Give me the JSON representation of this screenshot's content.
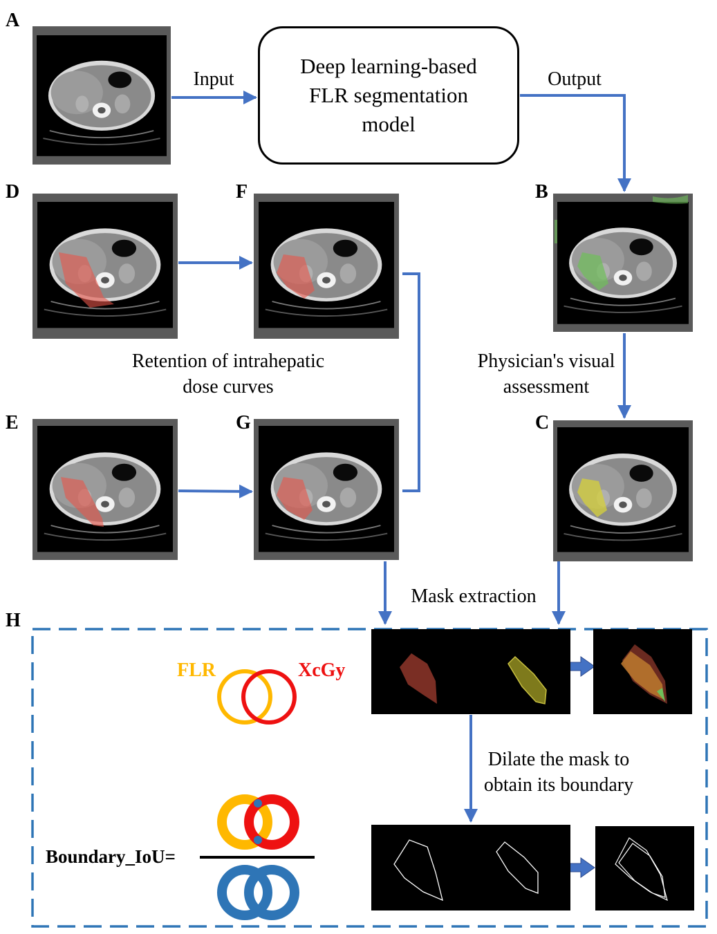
{
  "panel_labels": {
    "A": "A",
    "B": "B",
    "C": "C",
    "D": "D",
    "E": "E",
    "F": "F",
    "G": "G",
    "H": "H"
  },
  "edge_labels": {
    "input": "Input",
    "output": "Output",
    "retention_line1": "Retention of intrahepatic",
    "retention_line2": "dose curves",
    "physician_line1": "Physician's visual",
    "physician_line2": "assessment",
    "mask_extraction": "Mask extraction",
    "dilate_line1": "Dilate the mask to",
    "dilate_line2": "obtain its boundary"
  },
  "model": {
    "line1": "Deep learning-based",
    "line2": "FLR segmentation",
    "line3": "model"
  },
  "legend": {
    "flr": "FLR",
    "xcgy": "XcGy"
  },
  "formula": {
    "label": "Boundary_IoU="
  },
  "colors": {
    "arrow": "#4472C4",
    "flr": "#FFB800",
    "xcgy": "#EE1111",
    "union": "#2E75B6",
    "dashed_border": "#2E75B6",
    "frame": "#5A5A5A",
    "green_mask": "#6FBF5A",
    "yellow_mask": "#D6D03A",
    "red_mask": "#E8554A"
  }
}
